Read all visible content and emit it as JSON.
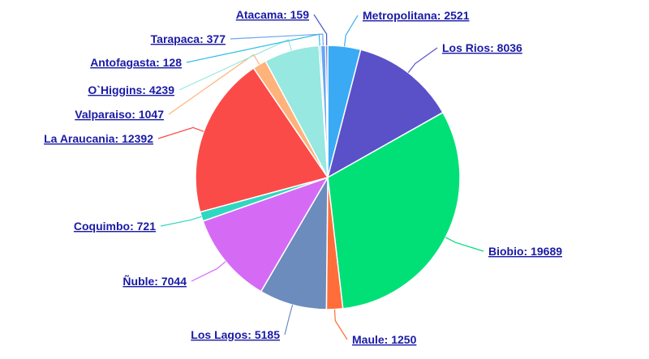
{
  "chart_data": {
    "type": "pie",
    "categories": [
      "Metropolitana",
      "Los Rios",
      "Biobio",
      "Maule",
      "Los Lagos",
      "Ñuble",
      "Coquimbo",
      "La Araucania",
      "Valparaiso",
      "O`Higgins",
      "Antofagasta",
      "Tarapaca",
      "Atacama"
    ],
    "values": [
      2521,
      8036,
      19689,
      1250,
      5185,
      7044,
      721,
      12392,
      1047,
      4239,
      128,
      377,
      159
    ],
    "labels": [
      "Metropolitana: 2521",
      "Los Rios: 8036",
      "Biobio: 19689",
      "Maule: 1250",
      "Los Lagos: 5185",
      "Ñuble: 7044",
      "Coquimbo: 721",
      "La Araucania: 12392",
      "Valparaiso: 1047",
      "O`Higgins: 4239",
      "Antofagasta: 128",
      "Tarapaca: 377",
      "Atacama: 159"
    ],
    "colors": [
      "#3aaaf5",
      "#5a50c8",
      "#00e077",
      "#ff6d3a",
      "#6b8cbd",
      "#d56bf5",
      "#2ed8c0",
      "#fb4b48",
      "#ffb27a",
      "#96e8e0",
      "#2cbfe5",
      "#6aa6f0",
      "#4a55c8"
    ]
  }
}
